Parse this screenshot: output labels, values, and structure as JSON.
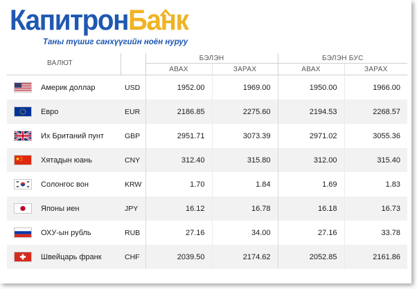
{
  "brand": {
    "name_part1": "Капитрон",
    "name_part2": "Банк",
    "tagline": "Таны түшиг санхүүгийн ноён нуруу",
    "colors": {
      "blue": "#1f58b1",
      "gold": "#f0b324"
    }
  },
  "table": {
    "currency_header": "ВАЛЮТ",
    "groups": [
      {
        "label": "БЭЛЭН",
        "buy_label": "АВАХ",
        "sell_label": "ЗАРАХ"
      },
      {
        "label": "БЭЛЭН БУС",
        "buy_label": "АВАХ",
        "sell_label": "ЗАРАХ"
      }
    ],
    "rows": [
      {
        "flag": "us-flag-icon",
        "name": "Америк доллар",
        "code": "USD",
        "cash_buy": "1952.00",
        "cash_sell": "1969.00",
        "noncash_buy": "1950.00",
        "noncash_sell": "1966.00"
      },
      {
        "flag": "eu-flag-icon",
        "name": "Евро",
        "code": "EUR",
        "cash_buy": "2186.85",
        "cash_sell": "2275.60",
        "noncash_buy": "2194.53",
        "noncash_sell": "2268.57"
      },
      {
        "flag": "uk-flag-icon",
        "name": "Их Британий пунт",
        "code": "GBP",
        "cash_buy": "2951.71",
        "cash_sell": "3073.39",
        "noncash_buy": "2971.02",
        "noncash_sell": "3055.36"
      },
      {
        "flag": "china-flag-icon",
        "name": "Хятадын юань",
        "code": "CNY",
        "cash_buy": "312.40",
        "cash_sell": "315.80",
        "noncash_buy": "312.00",
        "noncash_sell": "315.40"
      },
      {
        "flag": "korea-flag-icon",
        "name": "Солонгос вон",
        "code": "KRW",
        "cash_buy": "1.70",
        "cash_sell": "1.84",
        "noncash_buy": "1.69",
        "noncash_sell": "1.83"
      },
      {
        "flag": "japan-flag-icon",
        "name": "Японы иен",
        "code": "JPY",
        "cash_buy": "16.12",
        "cash_sell": "16.78",
        "noncash_buy": "16.18",
        "noncash_sell": "16.73"
      },
      {
        "flag": "russia-flag-icon",
        "name": "ОХУ-ын рубль",
        "code": "RUB",
        "cash_buy": "27.16",
        "cash_sell": "34.00",
        "noncash_buy": "27.16",
        "noncash_sell": "33.78"
      },
      {
        "flag": "swiss-flag-icon",
        "name": "Швейцарь франк",
        "code": "CHF",
        "cash_buy": "2039.50",
        "cash_sell": "2174.62",
        "noncash_buy": "2052.85",
        "noncash_sell": "2161.86"
      }
    ]
  }
}
